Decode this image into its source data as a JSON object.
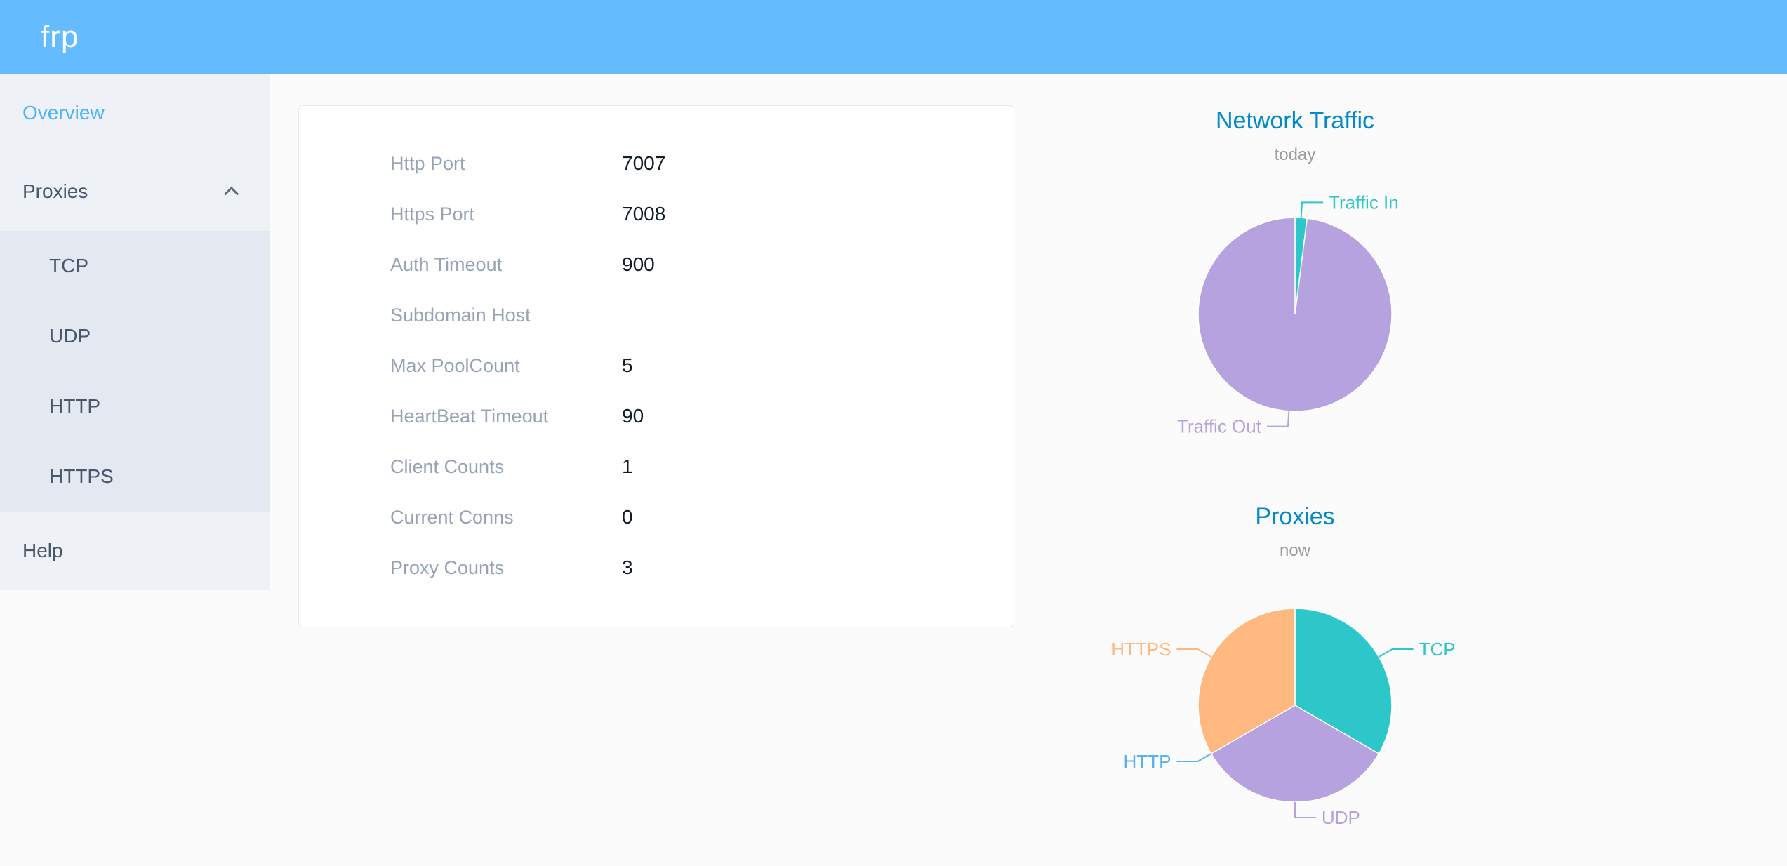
{
  "colors": {
    "header_bg": "#64bbfe",
    "sidebar_bg": "#eef1f6",
    "submenu_bg": "#e4e8f1",
    "active_item_blue": "#4db3ff",
    "chart_title_blue": "#008acd",
    "teal": "#2ec7c9",
    "purple": "#b6a2de",
    "blue": "#5ab1ef",
    "orange": "#ffb980"
  },
  "header": {
    "logo": "frp"
  },
  "sidebar": {
    "overview_label": "Overview",
    "proxies_label": "Proxies",
    "proxies_children": [
      {
        "label": "TCP"
      },
      {
        "label": "UDP"
      },
      {
        "label": "HTTP"
      },
      {
        "label": "HTTPS"
      }
    ],
    "help_label": "Help"
  },
  "overview": {
    "rows": [
      {
        "label": "Http Port",
        "value": "7007"
      },
      {
        "label": "Https Port",
        "value": "7008"
      },
      {
        "label": "Auth Timeout",
        "value": "900"
      },
      {
        "label": "Subdomain Host",
        "value": ""
      },
      {
        "label": "Max PoolCount",
        "value": "5"
      },
      {
        "label": "HeartBeat Timeout",
        "value": "90"
      },
      {
        "label": "Client Counts",
        "value": "1"
      },
      {
        "label": "Current Conns",
        "value": "0"
      },
      {
        "label": "Proxy Counts",
        "value": "3"
      }
    ]
  },
  "chart_data": [
    {
      "type": "pie",
      "title": "Network Traffic",
      "subtitle": "today",
      "unit": "percent-estimated",
      "legend_position": "none",
      "label_position": "outside",
      "series": [
        {
          "name": "Traffic In",
          "value": 2,
          "color": "#2ec7c9"
        },
        {
          "name": "Traffic Out",
          "value": 98,
          "color": "#b6a2de"
        }
      ]
    },
    {
      "type": "pie",
      "title": "Proxies",
      "subtitle": "now",
      "unit": "count",
      "legend_position": "none",
      "label_position": "outside",
      "series": [
        {
          "name": "TCP",
          "value": 1,
          "color": "#2ec7c9"
        },
        {
          "name": "UDP",
          "value": 1,
          "color": "#b6a2de"
        },
        {
          "name": "HTTP",
          "value": 0,
          "color": "#5ab1ef"
        },
        {
          "name": "HTTPS",
          "value": 1,
          "color": "#ffb980"
        }
      ]
    }
  ]
}
